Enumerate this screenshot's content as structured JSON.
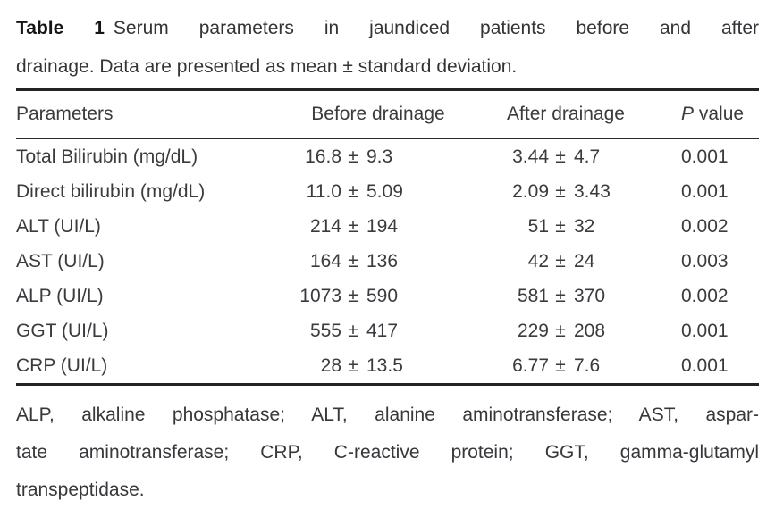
{
  "caption": {
    "label": "Table 1",
    "line1_rest": "Serum parameters in jaundiced patients before and after",
    "line2": "drainage. Data are presented as mean ± standard deviation."
  },
  "table": {
    "plusminus": "±",
    "headers": {
      "parameters": "Parameters",
      "before": "Before drainage",
      "after": "After drainage",
      "p_italic": "P",
      "p_rest": " value"
    },
    "rows": [
      {
        "parameter": "Total Bilirubin (mg/dL)",
        "before_mean": "16.8",
        "before_sd": "9.3",
        "after_mean": "3.44",
        "after_sd": "4.7",
        "p": "0.001"
      },
      {
        "parameter": "Direct bilirubin (mg/dL)",
        "before_mean": "11.0",
        "before_sd": "5.09",
        "after_mean": "2.09",
        "after_sd": "3.43",
        "p": "0.001"
      },
      {
        "parameter": "ALT (UI/L)",
        "before_mean": "214",
        "before_sd": "194",
        "after_mean": "51",
        "after_sd": "32",
        "p": "0.002"
      },
      {
        "parameter": "AST (UI/L)",
        "before_mean": "164",
        "before_sd": "136",
        "after_mean": "42",
        "after_sd": "24",
        "p": "0.003"
      },
      {
        "parameter": "ALP (UI/L)",
        "before_mean": "1073",
        "before_sd": "590",
        "after_mean": "581",
        "after_sd": "370",
        "p": "0.002"
      },
      {
        "parameter": "GGT (UI/L)",
        "before_mean": "555",
        "before_sd": "417",
        "after_mean": "229",
        "after_sd": "208",
        "p": "0.001"
      },
      {
        "parameter": "CRP (UI/L)",
        "before_mean": "28",
        "before_sd": "13.5",
        "after_mean": "6.77",
        "after_sd": "7.6",
        "p": "0.001"
      }
    ]
  },
  "footnote": {
    "line1": "ALP, alkaline phosphatase; ALT, alanine aminotransferase; AST, aspar-",
    "line2": "tate aminotransferase; CRP, C-reactive protein; GGT, gamma-glutamyl",
    "line3": "transpeptidase."
  }
}
